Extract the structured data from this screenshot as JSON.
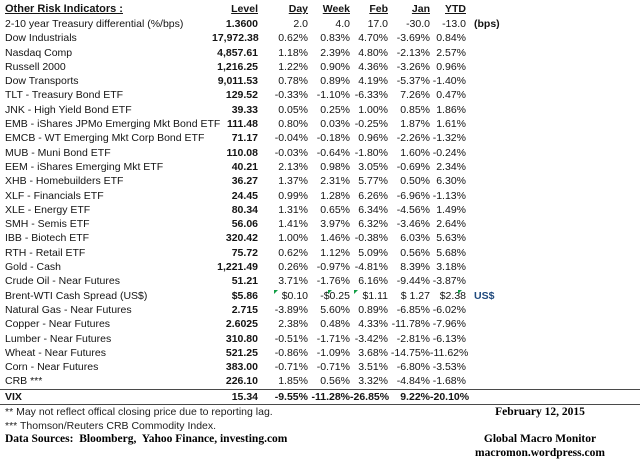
{
  "header": {
    "title": "Other Risk Indicators :",
    "columns": [
      "Level",
      "Day",
      "Week",
      "Feb",
      "Jan",
      "YTD"
    ]
  },
  "table": {
    "rows": [
      {
        "name": "2-10 year Treasury differential (%/bps)",
        "level": "1.3600",
        "day": "2.0",
        "week": "4.0",
        "feb": "17.0",
        "jan": "-30.0",
        "ytd": "-13.0",
        "extra": "(bps)"
      },
      {
        "name": "Dow Industrials",
        "level": "17,972.38",
        "day": "0.62%",
        "week": "0.83%",
        "feb": "4.70%",
        "jan": "-3.69%",
        "ytd": "0.84%"
      },
      {
        "name": "Nasdaq Comp",
        "level": "4,857.61",
        "day": "1.18%",
        "week": "2.39%",
        "feb": "4.80%",
        "jan": "-2.13%",
        "ytd": "2.57%"
      },
      {
        "name": "Russell 2000",
        "level": "1,216.25",
        "day": "1.22%",
        "week": "0.90%",
        "feb": "4.36%",
        "jan": "-3.26%",
        "ytd": "0.96%"
      },
      {
        "name": "Dow Transports",
        "level": "9,011.53",
        "day": "0.78%",
        "week": "0.89%",
        "feb": "4.19%",
        "jan": "-5.37%",
        "ytd": "-1.40%"
      },
      {
        "name": "TLT - Treasury Bond ETF",
        "level": "129.52",
        "day": "-0.33%",
        "week": "-1.10%",
        "feb": "-6.33%",
        "jan": "7.26%",
        "ytd": "0.47%"
      },
      {
        "name": "JNK - High Yield Bond ETF",
        "level": "39.33",
        "day": "0.05%",
        "week": "0.25%",
        "feb": "1.00%",
        "jan": "0.85%",
        "ytd": "1.86%"
      },
      {
        "name": "EMB - iShares JPMo Emerging Mkt Bond ETF",
        "level": "111.48",
        "day": "0.80%",
        "week": "0.03%",
        "feb": "-0.25%",
        "jan": "1.87%",
        "ytd": "1.61%"
      },
      {
        "name": "EMCB - WT Emerging Mkt Corp Bond ETF",
        "level": "71.17",
        "day": "-0.04%",
        "week": "-0.18%",
        "feb": "0.96%",
        "jan": "-2.26%",
        "ytd": "-1.32%"
      },
      {
        "name": "MUB - Muni Bond ETF",
        "level": "110.08",
        "day": "-0.03%",
        "week": "-0.64%",
        "feb": "-1.80%",
        "jan": "1.60%",
        "ytd": "-0.24%"
      },
      {
        "name": "EEM - iShares Emerging Mkt ETF",
        "level": "40.21",
        "day": "2.13%",
        "week": "0.98%",
        "feb": "3.05%",
        "jan": "-0.69%",
        "ytd": "2.34%"
      },
      {
        "name": "XHB - Homebuilders ETF",
        "level": "36.27",
        "day": "1.37%",
        "week": "2.31%",
        "feb": "5.77%",
        "jan": "0.50%",
        "ytd": "6.30%"
      },
      {
        "name": "XLF - Financials ETF",
        "level": "24.45",
        "day": "0.99%",
        "week": "1.28%",
        "feb": "6.26%",
        "jan": "-6.96%",
        "ytd": "-1.13%"
      },
      {
        "name": "XLE - Energy ETF",
        "level": "80.34",
        "day": "1.31%",
        "week": "0.65%",
        "feb": "6.34%",
        "jan": "-4.56%",
        "ytd": "1.49%"
      },
      {
        "name": "SMH - Semis ETF",
        "level": "56.06",
        "day": "1.41%",
        "week": "3.97%",
        "feb": "6.32%",
        "jan": "-3.46%",
        "ytd": "2.64%"
      },
      {
        "name": "IBB - Biotech ETF",
        "level": "320.42",
        "day": "1.00%",
        "week": "1.46%",
        "feb": "-0.38%",
        "jan": "6.03%",
        "ytd": "5.63%"
      },
      {
        "name": "RTH - Retail ETF",
        "level": "75.72",
        "day": "0.62%",
        "week": "1.12%",
        "feb": "5.09%",
        "jan": "0.56%",
        "ytd": "5.68%"
      },
      {
        "name": "Gold - Cash",
        "level": "1,221.49",
        "day": "0.26%",
        "week": "-0.97%",
        "feb": "-4.81%",
        "jan": "8.39%",
        "ytd": "3.18%"
      },
      {
        "name": "Crude Oil - Near Futures",
        "level": "51.21",
        "day": "3.71%",
        "week": "-1.76%",
        "feb": "6.16%",
        "jan": "-9.44%",
        "ytd": "-3.87%"
      },
      {
        "name": "Brent-WTI Cash Spread (US$)",
        "level": "$5.86",
        "day": "$0.10",
        "week": "-$0.25",
        "feb": "$1.11",
        "jan": "$ 1.27",
        "ytd": "$2.38",
        "extra": "US$",
        "extra_navy": true,
        "flags": [
          "day",
          "week",
          "feb",
          "ytd"
        ]
      },
      {
        "name": "Natural Gas - Near Futures",
        "level": "2.715",
        "day": "-3.89%",
        "week": "5.60%",
        "feb": "0.89%",
        "jan": "-6.85%",
        "ytd": "-6.02%"
      },
      {
        "name": "Copper - Near Futures",
        "level": "2.6025",
        "day": "2.38%",
        "week": "0.48%",
        "feb": "4.33%",
        "jan": "-11.78%",
        "ytd": "-7.96%"
      },
      {
        "name": "Lumber - Near Futures",
        "level": "310.80",
        "day": "-0.51%",
        "week": "-1.71%",
        "feb": "-3.42%",
        "jan": "-2.81%",
        "ytd": "-6.13%"
      },
      {
        "name": "Wheat - Near Futures",
        "level": "521.25",
        "day": "-0.86%",
        "week": "-1.09%",
        "feb": "3.68%",
        "jan": "-14.75%",
        "ytd": "-11.62%"
      },
      {
        "name": "Corn - Near Futures",
        "level": "383.00",
        "day": "-0.71%",
        "week": "-0.71%",
        "feb": "3.51%",
        "jan": "-6.80%",
        "ytd": "-3.53%"
      },
      {
        "name": "CRB ***",
        "level": "226.10",
        "day": "1.85%",
        "week": "0.56%",
        "feb": "3.32%",
        "jan": "-4.84%",
        "ytd": "-1.68%"
      },
      {
        "name": "VIX",
        "level": "15.34",
        "day": "-9.55%",
        "week": "-11.28%",
        "feb": "-26.85%",
        "jan": "9.22%",
        "ytd": "-20.10%",
        "emphasis": true
      }
    ]
  },
  "footnotes": [
    "**  May not reflect offical closing price due to reporting lag.",
    "*** Thomson/Reuters CRB Commodity Index."
  ],
  "data_sources": "Data Sources:  Bloomberg,  Yahoo Finance, investing.com",
  "footer_right": {
    "date": "February 12, 2015",
    "brand": "Global Macro Monitor",
    "url": "macromon.wordpress.com"
  },
  "colors": {
    "flag_green": "#119E45",
    "us_dollar_navy": "#1F497D",
    "rule_gray": "#4a4a4a"
  }
}
